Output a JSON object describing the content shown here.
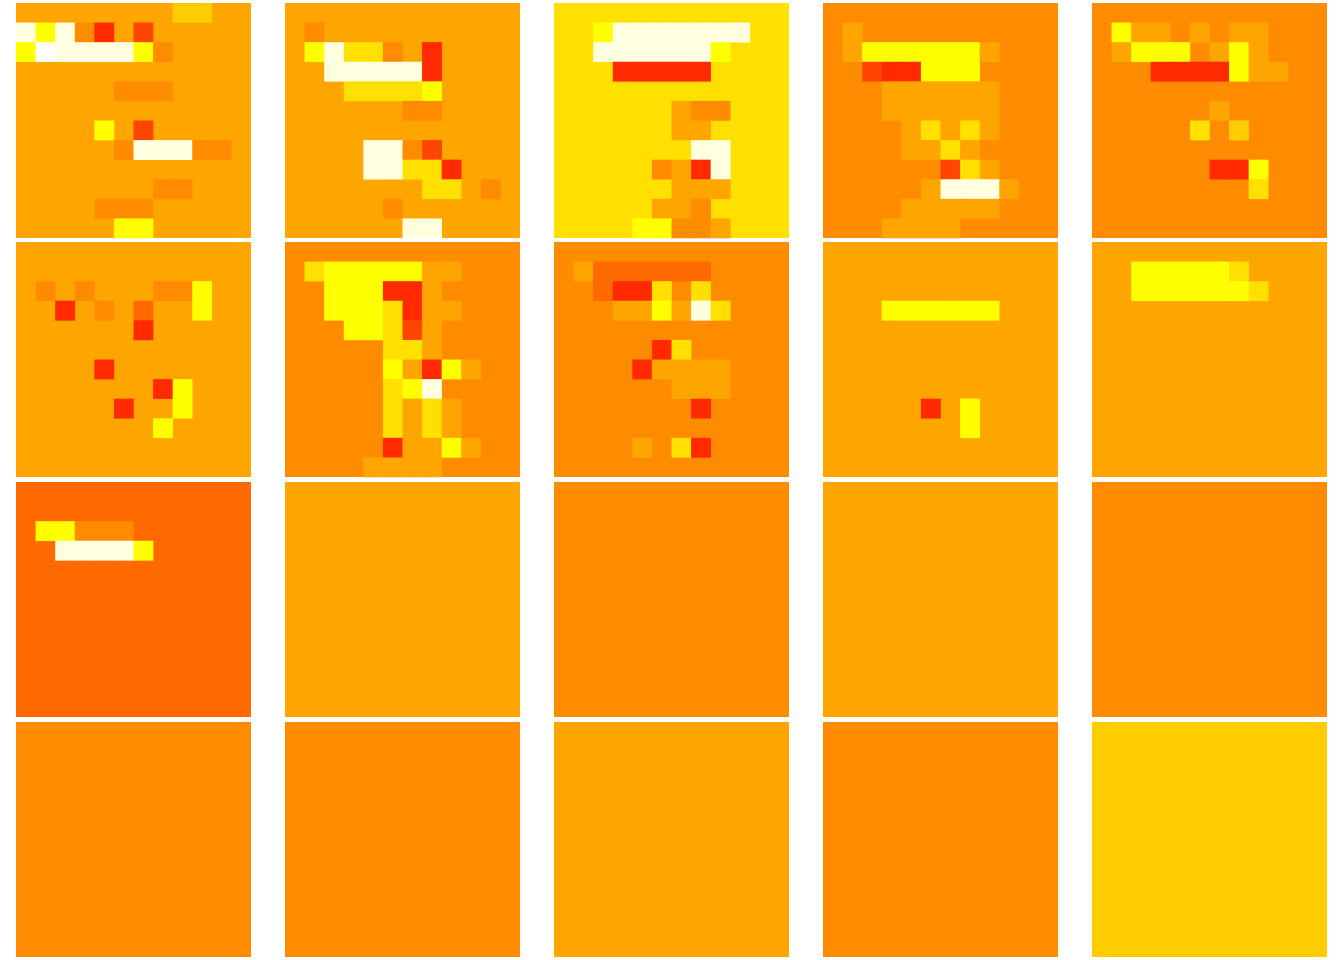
{
  "chart_data": {
    "type": "heatmap",
    "layout": {
      "rows": 4,
      "cols": 5
    },
    "grid_size": 12,
    "colormap": "hot",
    "value_range": [
      0,
      1
    ],
    "palette": [
      "#ffffff",
      "#ffffe0",
      "#ffff00",
      "#ffe000",
      "#ffcc00",
      "#ffa500",
      "#ff8c00",
      "#ff6a00",
      "#ff4500",
      "#ff2a00"
    ],
    "default_levels": [
      "2",
      "2",
      "3",
      "2",
      "2",
      "2",
      "2",
      "2",
      "2",
      "2"
    ],
    "panel_backgrounds": [
      {
        "panel": 1,
        "level": 5
      },
      {
        "panel": 2,
        "level": 5
      },
      {
        "panel": 3,
        "level": 3
      },
      {
        "panel": 4,
        "level": 6
      },
      {
        "panel": 5,
        "level": 6
      },
      {
        "panel": 6,
        "level": 5
      },
      {
        "panel": 7,
        "level": 6
      },
      {
        "panel": 8,
        "level": 6
      },
      {
        "panel": 9,
        "level": 5
      },
      {
        "panel": 10,
        "level": 5
      },
      {
        "panel": 11,
        "level": 7
      },
      {
        "panel": 12,
        "level": 5
      },
      {
        "panel": 13,
        "level": 6
      },
      {
        "panel": 14,
        "level": 5
      },
      {
        "panel": 15,
        "level": 6
      },
      {
        "panel": 16,
        "level": 6
      },
      {
        "panel": 17,
        "level": 6
      },
      {
        "panel": 18,
        "level": 5
      },
      {
        "panel": 19,
        "level": 6
      },
      {
        "panel": 20,
        "level": 4
      }
    ],
    "panels": [
      [
        "555555554455",
        "121695855555",
        "201111265555",
        "555555555555",
        "555556665555",
        "555555555555",
        "555525855555",
        "555556111665",
        "555555555555",
        "555555566555",
        "555566655555",
        "555552255555"
      ],
      [
        "555555555555",
        "565555555555",
        "521336595555",
        "551111195555",
        "555333325555",
        "555555665555",
        "555555555555",
        "555511685555",
        "555511339555",
        "555555533565",
        "555556555555",
        "555555115555"
      ],
      [
        "333333333333",
        "332111111133",
        "331111112333",
        "333999993333",
        "333333333333",
        "333333566333",
        "333333553333",
        "333333311333",
        "333336591333",
        "333333555333",
        "333335563333",
        "333322665333"
      ],
      [
        "666666666666",
        "656666666666",
        "652222225666",
        "668992226666",
        "666555555666",
        "666555555666",
        "666653535666",
        "666655356666",
        "666666835666",
        "666665111566",
        "666655555666",
        "666555566666"
      ],
      [
        "666666666666",
        "625565655666",
        "652226525666",
        "666999925566",
        "666666666666",
        "666666566666",
        "666663646666",
        "666666666666",
        "666666992666",
        "666666663666",
        "666666666666",
        "666666666666"
      ],
      [
        "555555555555",
        "555555555555",
        "565655566255",
        "559565755255",
        "555555955555",
        "555555555555",
        "555595555555",
        "555555592555",
        "555559552555",
        "555555525555",
        "555555555555",
        "555555555555"
      ],
      [
        "666666666666",
        "632222255666",
        "662229956666",
        "662223955666",
        "666223856666",
        "666663356666",
        "666662592566",
        "666663216666",
        "666663535666",
        "666663535666",
        "666669552566",
        "666655556666"
      ],
      [
        "666666666666",
        "657777776666",
        "667993636666",
        "666552513666",
        "666666666666",
        "666669366666",
        "666695555666",
        "666666555666",
        "666666696666",
        "666666666666",
        "666656396666",
        "666666666666"
      ],
      [
        "555555555555",
        "555555555555",
        "555555555555",
        "555222222555",
        "555555555555",
        "555555555555",
        "555555555555",
        "555555555555",
        "555559525555",
        "555555525555",
        "555555555555",
        "555555555555"
      ],
      [
        "555555555555",
        "552222235555",
        "552222223555",
        "555555555555",
        "555555555555",
        "555555555555",
        "555555555555",
        "555555555555",
        "555555555555",
        "555555555555",
        "555555555555",
        "555555555555"
      ],
      [
        "777777777777",
        "777777777777",
        "722666777777",
        "771111277777",
        "777777777777",
        "777777777777",
        "777777777777",
        "777777777777",
        "777777777777",
        "777777777777",
        "777777777777",
        "777777777777"
      ],
      [
        "555555555555",
        "555555555555",
        "555555555555",
        "555555555555",
        "555555555555",
        "555555555555",
        "555555555555",
        "555555555555",
        "555555555555",
        "555555555555",
        "555555555555",
        "555555555555"
      ],
      [
        "666666666666",
        "666666666666",
        "666666666666",
        "666666666666",
        "666666666666",
        "666666666666",
        "666666666666",
        "666666666666",
        "666666666666",
        "666666666666",
        "666666666666",
        "666666666666"
      ],
      [
        "555555555555",
        "555555555555",
        "555555555555",
        "555555555555",
        "555555555555",
        "555555555555",
        "555555555555",
        "555555555555",
        "555555555555",
        "555555555555",
        "555555555555",
        "555555555555"
      ],
      [
        "666666666666",
        "666666666666",
        "666666666666",
        "666666666666",
        "666666666666",
        "666666666666",
        "666666666666",
        "666666666666",
        "666666666666",
        "666666666666",
        "666666666666",
        "666666666666"
      ],
      [
        "666666666666",
        "666666666666",
        "666666666666",
        "666666666666",
        "666666666666",
        "666666666666",
        "666666666666",
        "666666666666",
        "666666666666",
        "666666666666",
        "666666666666",
        "666666666666"
      ],
      [
        "666666666666",
        "666666666666",
        "666666666666",
        "666666666666",
        "666666666666",
        "666666666666",
        "666666666666",
        "666666666666",
        "666666666666",
        "666666666666",
        "666666666666",
        "666666666666"
      ],
      [
        "555555555555",
        "555555555555",
        "555555555555",
        "555555555555",
        "555555555555",
        "555555555555",
        "555555555555",
        "555555555555",
        "555555555555",
        "555555555555",
        "555555555555",
        "555555555555"
      ],
      [
        "666666666666",
        "666666666666",
        "666666666666",
        "666666666666",
        "666666666666",
        "666666666666",
        "666666666666",
        "666666666666",
        "666666666666",
        "666666666666",
        "666666666666",
        "666666666666"
      ],
      [
        "444444444444",
        "444444444444",
        "444444444444",
        "444444444444",
        "444444444444",
        "444444444444",
        "444444444444",
        "444444444444",
        "444444444444",
        "444444444444",
        "444444444444",
        "444444444444"
      ]
    ]
  }
}
